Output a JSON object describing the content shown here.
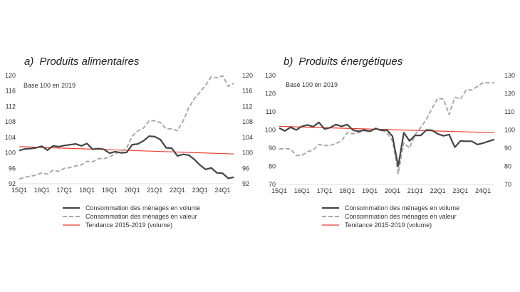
{
  "colors": {
    "volume": "#444444",
    "valeur": "#aaaaaa",
    "tendance": "#ef3b2c",
    "text": "#333333"
  },
  "chart_data": [
    {
      "type": "line",
      "title_letter": "a)",
      "title": "Produits alimentaires",
      "annotation": "Base 100 en 2019",
      "xlabel": "",
      "ylabel": "",
      "x_ticks": [
        "15Q1",
        "16Q1",
        "17Q1",
        "18Q1",
        "19Q1",
        "20Q1",
        "21Q1",
        "22Q1",
        "23Q1",
        "24Q1"
      ],
      "y_ticks": [
        92,
        96,
        100,
        104,
        108,
        112,
        116,
        120
      ],
      "ylim": [
        92,
        120
      ],
      "grid": false,
      "series": [
        {
          "name": "Consommation des ménages en volume",
          "style": "solid",
          "values": [
            100.6,
            101.0,
            101.1,
            101.3,
            101.7,
            100.7,
            101.8,
            101.6,
            101.9,
            102.1,
            102.3,
            101.8,
            102.4,
            100.9,
            101.1,
            100.9,
            99.9,
            100.3,
            100.0,
            100.1,
            102.1,
            102.3,
            103.1,
            104.3,
            104.2,
            103.4,
            101.3,
            101.2,
            99.2,
            99.6,
            99.4,
            98.3,
            96.8,
            95.7,
            96.1,
            94.8,
            94.7,
            93.4,
            93.7
          ]
        },
        {
          "name": "Consommation des ménages en valeur",
          "style": "dashed",
          "values": [
            93.2,
            93.7,
            93.9,
            94.3,
            94.8,
            94.5,
            95.5,
            95.2,
            96.0,
            96.2,
            96.6,
            96.9,
            97.8,
            97.7,
            98.5,
            98.5,
            98.9,
            99.8,
            100.4,
            101.2,
            104.3,
            105.7,
            106.4,
            108.3,
            108.3,
            107.8,
            106.2,
            106.2,
            105.7,
            108.2,
            111.6,
            114.0,
            115.7,
            117.5,
            119.7,
            119.4,
            119.9,
            117.2,
            118.0
          ]
        },
        {
          "name": "Tendance 2015-2019 (volume)",
          "style": "solid-thin",
          "values": [
            101.6,
            99.7
          ]
        }
      ]
    },
    {
      "type": "line",
      "title_letter": "b)",
      "title": "Produits énergétiques",
      "annotation": "Base 100 en 2019",
      "xlabel": "",
      "ylabel": "",
      "x_ticks": [
        "15Q1",
        "16Q1",
        "17Q1",
        "18Q1",
        "19Q1",
        "20Q1",
        "21Q1",
        "22Q1",
        "23Q1",
        "24Q1"
      ],
      "y_ticks_left": [
        70,
        80,
        90,
        100,
        110,
        120,
        130
      ],
      "y_ticks_right": [
        70,
        80,
        90,
        100,
        110,
        120,
        130
      ],
      "ylim": [
        70,
        130
      ],
      "grid": false,
      "series": [
        {
          "name": "Consommation des ménages en volume",
          "style": "solid",
          "values": [
            101.0,
            99.5,
            101.5,
            100.0,
            102.0,
            102.8,
            101.8,
            104.2,
            100.5,
            101.3,
            103.0,
            102.0,
            103.0,
            100.0,
            99.2,
            100.0,
            99.2,
            100.8,
            99.8,
            100.0,
            96.5,
            80.0,
            98.5,
            94.0,
            97.0,
            97.0,
            100.0,
            99.8,
            97.8,
            96.8,
            97.5,
            90.5,
            94.0,
            93.8,
            93.8,
            92.0,
            92.8,
            93.8,
            94.8
          ]
        },
        {
          "name": "Consommation des ménages en valeur",
          "style": "dashed",
          "values": [
            89.5,
            89.8,
            89.5,
            86.0,
            86.0,
            88.0,
            89.0,
            92.0,
            91.5,
            91.5,
            92.5,
            94.0,
            98.5,
            98.0,
            98.5,
            99.5,
            99.5,
            101.0,
            100.0,
            98.5,
            94.0,
            76.0,
            93.0,
            90.0,
            97.5,
            101.5,
            106.0,
            112.0,
            117.5,
            117.0,
            108.5,
            118.0,
            117.0,
            122.0,
            122.0,
            124.0,
            126.0,
            126.0,
            126.0
          ]
        },
        {
          "name": "Tendance 2015-2019 (volume)",
          "style": "solid-thin",
          "values": [
            102.0,
            98.5
          ]
        }
      ]
    }
  ]
}
